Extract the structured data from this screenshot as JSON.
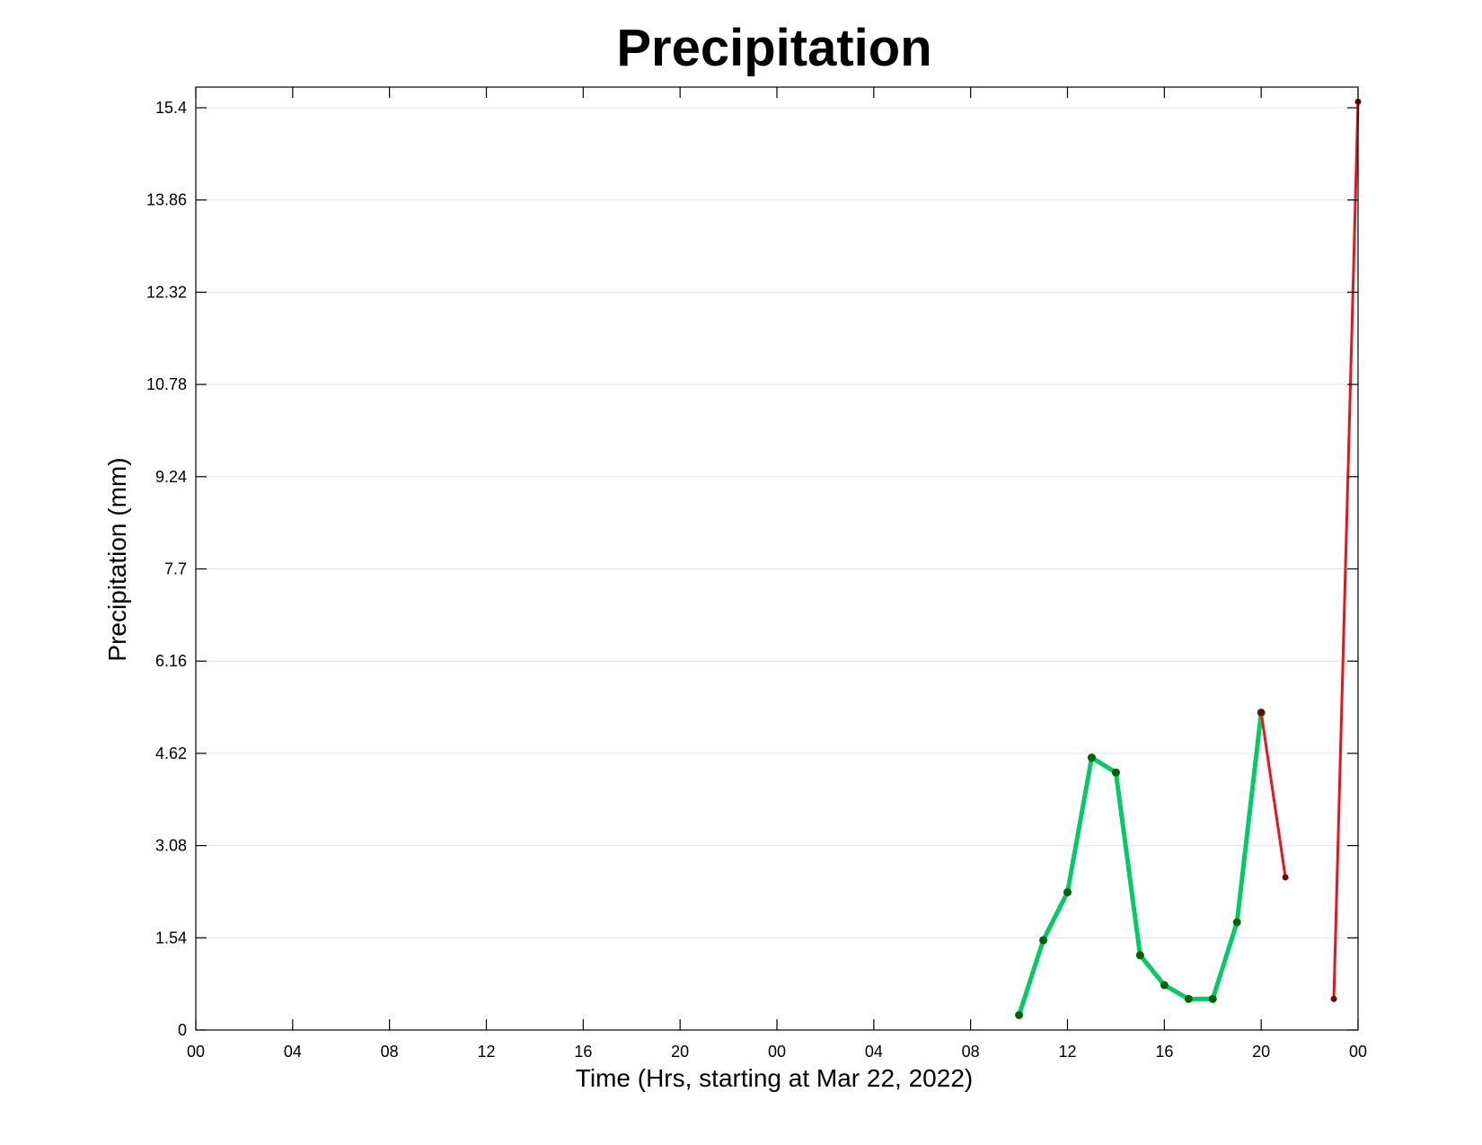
{
  "chart_data": {
    "type": "line",
    "title": "Precipitation",
    "xlabel": "Time (Hrs, starting at Mar 22, 2022)",
    "ylabel": "Precipitation (mm)",
    "x_unit": "hours since Mar 22, 2022 00:00",
    "xlim": [
      0,
      48
    ],
    "ylim": [
      0,
      15.4
    ],
    "x_ticks": [
      0,
      4,
      8,
      12,
      16,
      20,
      24,
      28,
      32,
      36,
      40,
      44,
      48
    ],
    "x_tick_labels": [
      "00",
      "04",
      "08",
      "12",
      "16",
      "20",
      "00",
      "04",
      "08",
      "12",
      "16",
      "20",
      "00"
    ],
    "y_ticks": [
      0,
      1.54,
      3.08,
      4.62,
      6.16,
      7.7,
      9.24,
      10.78,
      12.32,
      13.86,
      15.4
    ],
    "y_tick_labels": [
      "0",
      "1.54",
      "3.08",
      "4.62",
      "6.16",
      "7.7",
      "9.24",
      "10.78",
      "12.32",
      "13.86",
      "15.4"
    ],
    "grid": "horizontal",
    "series": [
      {
        "color": "#00cc66",
        "marker_color": "#006400",
        "x": [
          34,
          35,
          36,
          37,
          38,
          39,
          40,
          41,
          42,
          43,
          44
        ],
        "y": [
          0.25,
          1.5,
          2.3,
          4.55,
          4.3,
          1.25,
          0.75,
          0.52,
          0.52,
          1.8,
          5.3
        ]
      },
      {
        "color": "#e8131b",
        "marker_color": "#7a0000",
        "x": [
          44,
          45
        ],
        "y": [
          5.3,
          2.55
        ]
      },
      {
        "color": "#e8131b",
        "marker_color": "#7a0000",
        "x": [
          47,
          48
        ],
        "y": [
          0.52,
          15.5
        ]
      }
    ]
  }
}
